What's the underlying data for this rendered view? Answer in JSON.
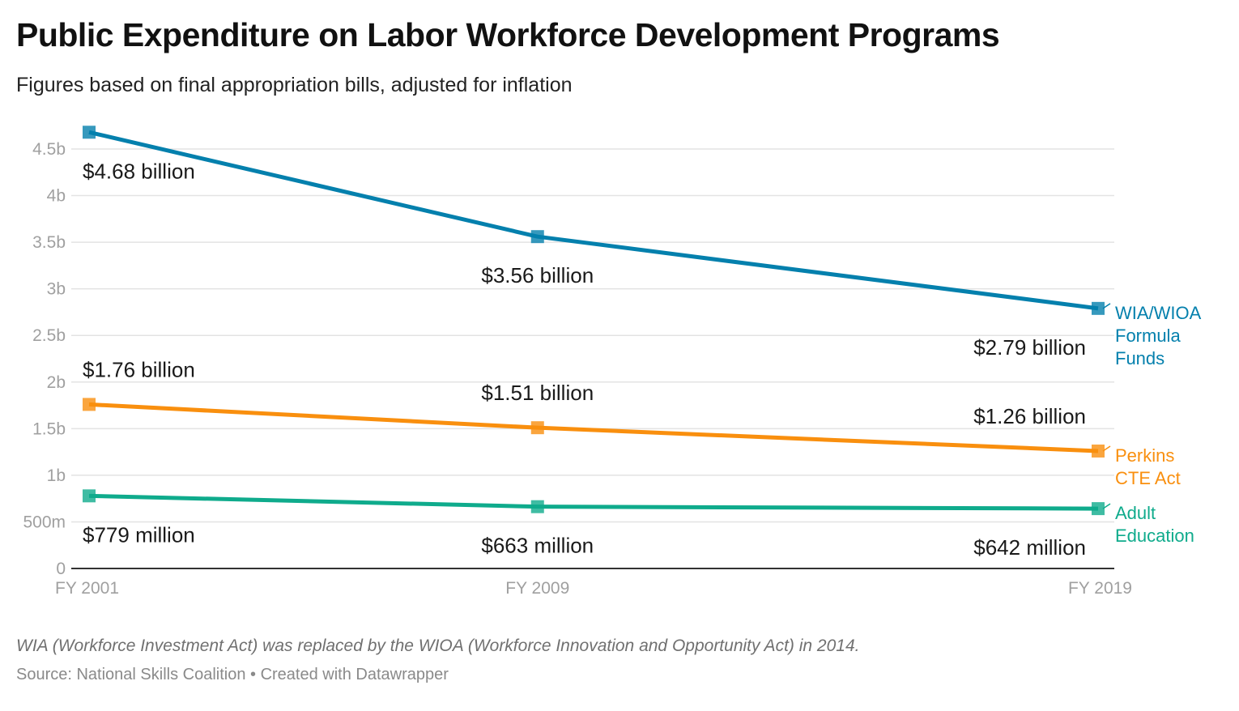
{
  "title": "Public Expenditure on Labor Workforce Development Programs",
  "subtitle": "Figures based on final appropriation bills, adjusted for inflation",
  "note": "WIA (Workforce Investment Act) was replaced by the WIOA (Workforce Innovation and Opportunity Act) in 2014.",
  "source": "Source: National Skills Coalition • Created with Datawrapper",
  "chart_data": {
    "type": "line",
    "categories": [
      "FY 2001",
      "FY 2009",
      "FY 2019"
    ],
    "x_values": [
      2001,
      2009,
      2019
    ],
    "ylim": [
      0,
      4800000000
    ],
    "y_ticks": [
      {
        "value": 0,
        "label": "0"
      },
      {
        "value": 500000000,
        "label": "500m"
      },
      {
        "value": 1000000000,
        "label": "1b"
      },
      {
        "value": 1500000000,
        "label": "1.5b"
      },
      {
        "value": 2000000000,
        "label": "2b"
      },
      {
        "value": 2500000000,
        "label": "2.5b"
      },
      {
        "value": 3000000000,
        "label": "3b"
      },
      {
        "value": 3500000000,
        "label": "3.5b"
      },
      {
        "value": 4000000000,
        "label": "4b"
      },
      {
        "value": 4500000000,
        "label": "4.5b"
      }
    ],
    "grid": true,
    "legend": "direct labels at right end of lines",
    "series": [
      {
        "name_lines": [
          "WIA/WIOA",
          "Formula",
          "Funds"
        ],
        "color": "#0480ad",
        "values": [
          4680000000,
          3560000000,
          2790000000
        ],
        "labels": [
          "$4.68 billion",
          "$3.56 billion",
          "$2.79 billion"
        ],
        "label_side": [
          "below",
          "below",
          "below"
        ]
      },
      {
        "name_lines": [
          "Perkins",
          "CTE Act"
        ],
        "color": "#f98f0e",
        "values": [
          1760000000,
          1510000000,
          1260000000
        ],
        "labels": [
          "$1.76 billion",
          "$1.51 billion",
          "$1.26 billion"
        ],
        "label_side": [
          "above",
          "above",
          "above"
        ]
      },
      {
        "name_lines": [
          "Adult",
          "Education"
        ],
        "color": "#0fab8c",
        "values": [
          779000000,
          663000000,
          642000000
        ],
        "labels": [
          "$779 million",
          "$663 million",
          "$642 million"
        ],
        "label_side": [
          "below",
          "below",
          "below"
        ]
      }
    ]
  }
}
